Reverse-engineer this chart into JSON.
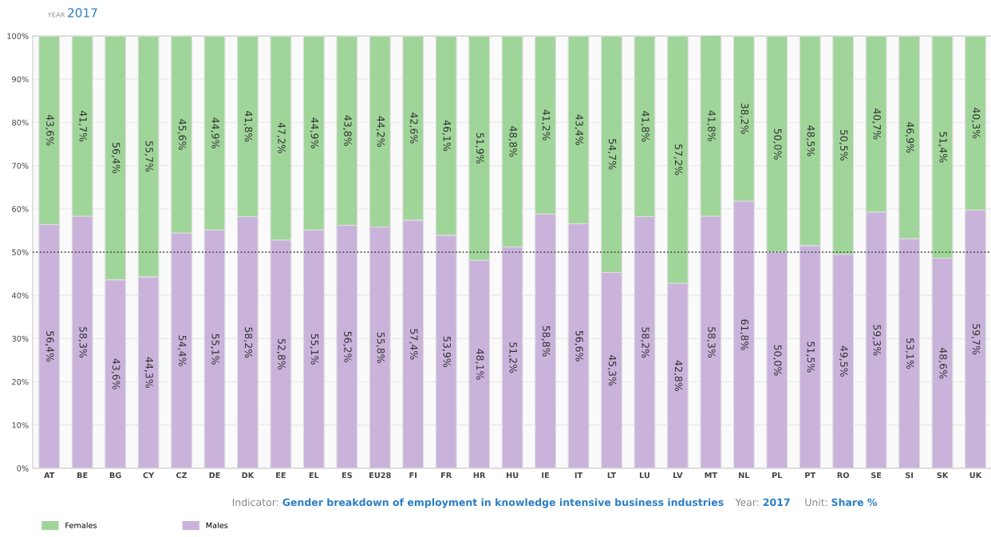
{
  "chart_data": {
    "type": "bar",
    "stacked": true,
    "title": "2017",
    "categories": [
      "AT",
      "BE",
      "BG",
      "CY",
      "CZ",
      "DE",
      "DK",
      "EE",
      "EL",
      "ES",
      "EU28",
      "FI",
      "FR",
      "HR",
      "HU",
      "IE",
      "IT",
      "LT",
      "LU",
      "LV",
      "MT",
      "NL",
      "PL",
      "PT",
      "RO",
      "SE",
      "SI",
      "SK",
      "UK"
    ],
    "series": [
      {
        "name": "Males",
        "color": "#c9b3db",
        "values": [
          56.4,
          58.3,
          43.6,
          44.3,
          54.4,
          55.1,
          58.2,
          52.8,
          55.1,
          56.2,
          55.8,
          57.4,
          53.9,
          48.1,
          51.2,
          58.8,
          56.6,
          45.3,
          58.2,
          42.8,
          58.3,
          61.8,
          50.0,
          51.5,
          49.5,
          59.3,
          53.1,
          48.6,
          59.7
        ],
        "value_labels": [
          "56,4%",
          "58,3%",
          "43,6%",
          "44,3%",
          "54,4%",
          "55,1%",
          "58,2%",
          "52,8%",
          "55,1%",
          "56,2%",
          "55,8%",
          "57,4%",
          "53,9%",
          "48,1%",
          "51,2%",
          "58,8%",
          "56,6%",
          "45,3%",
          "58,2%",
          "42,8%",
          "58,3%",
          "61,8%",
          "50,0%",
          "51,5%",
          "49,5%",
          "59,3%",
          "53,1%",
          "48,6%",
          "59,7%"
        ]
      },
      {
        "name": "Females",
        "color": "#a0d59a",
        "values": [
          43.6,
          41.7,
          56.4,
          55.7,
          45.6,
          44.9,
          41.8,
          47.2,
          44.9,
          43.8,
          44.2,
          42.6,
          46.1,
          51.9,
          48.8,
          41.2,
          43.4,
          54.7,
          41.8,
          57.2,
          41.8,
          38.2,
          50.0,
          48.5,
          50.5,
          40.7,
          46.9,
          51.4,
          40.3
        ],
        "value_labels": [
          "43,6%",
          "41,7%",
          "56,4%",
          "55,7%",
          "45,6%",
          "44,9%",
          "41,8%",
          "47,2%",
          "44,9%",
          "43,8%",
          "44,2%",
          "42,6%",
          "46,1%",
          "51,9%",
          "48,8%",
          "41,2%",
          "43,4%",
          "54,7%",
          "41,8%",
          "57,2%",
          "41,8%",
          "38,2%",
          "50,0%",
          "48,5%",
          "50,5%",
          "40,7%",
          "46,9%",
          "51,4%",
          "40,3%"
        ]
      }
    ],
    "ylim": [
      0,
      100
    ],
    "yticks": [
      {
        "value": 0,
        "label": "0%"
      },
      {
        "value": 10,
        "label": "10%"
      },
      {
        "value": 20,
        "label": "20%"
      },
      {
        "value": 30,
        "label": "30%"
      },
      {
        "value": 40,
        "label": "40%"
      },
      {
        "value": 50,
        "label": "50%"
      },
      {
        "value": 60,
        "label": "60%"
      },
      {
        "value": 70,
        "label": "70%"
      },
      {
        "value": 80,
        "label": "80%"
      },
      {
        "value": 90,
        "label": "90%"
      },
      {
        "value": 100,
        "label": "100%"
      }
    ],
    "grid": "y",
    "ref_lines": [
      {
        "axis": "y",
        "value": 50,
        "color": "#333333",
        "line_style": "dotted"
      }
    ],
    "legend": "bottom left",
    "annotations": [
      "YEAR",
      "Indicator:",
      "Gender breakdown of employment in knowledge intensive business industries",
      "Year:",
      "2017",
      "Unit:",
      "Share %"
    ]
  }
}
